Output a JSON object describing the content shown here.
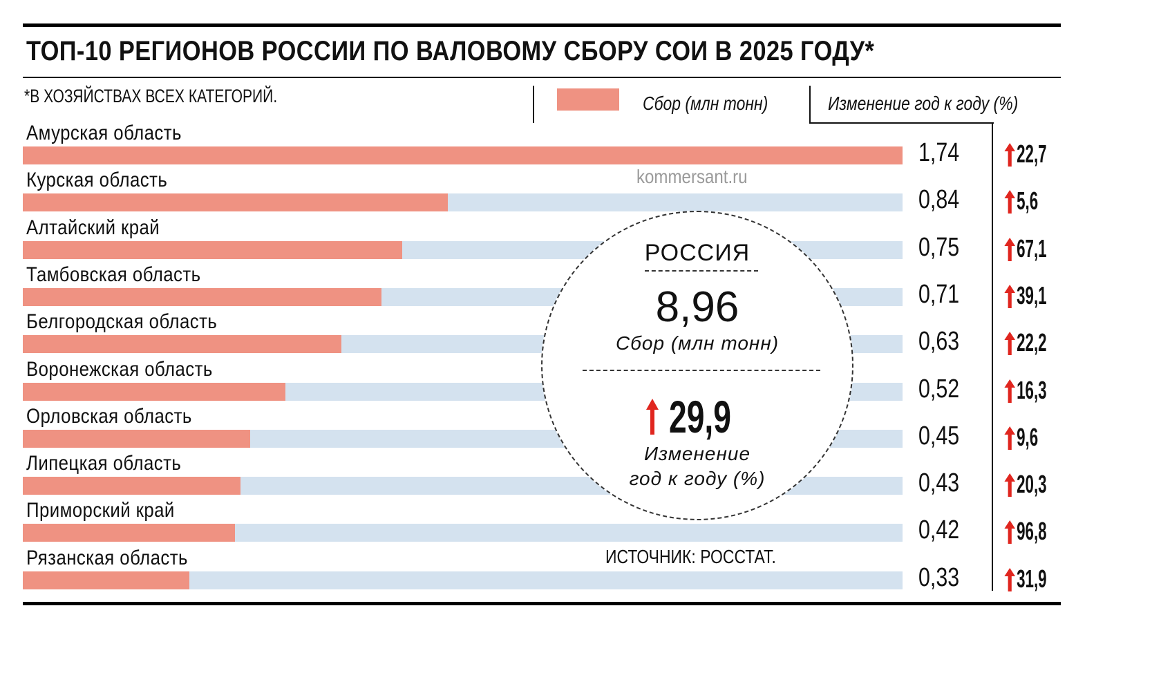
{
  "header": {
    "title": "ТОП-10 РЕГИОНОВ РОССИИ ПО ВАЛОВОМУ СБОРУ СОИ В 2025 ГОДУ*",
    "footnote": "*В ХОЗЯЙСТВАХ ВСЕХ КАТЕГОРИЙ."
  },
  "legend": {
    "harvest_label": "Сбор (млн тонн)",
    "change_label": "Изменение год к году (%)",
    "harvest_color": "#ef9282",
    "track_color": "#d4e2ef",
    "arrow_color": "#e0261f"
  },
  "watermark": "kommersant.ru",
  "summary": {
    "title": "РОССИЯ",
    "total": "8,96",
    "total_label": "Сбор (млн тонн)",
    "change": "29,9",
    "change_label_line1": "Изменение",
    "change_label_line2": "год к году (%)",
    "change_direction": "up-arrow-icon"
  },
  "source": "ИСТОЧНИК: РОССТАТ.",
  "rows": [
    {
      "region": "Амурская область",
      "value": "1,74",
      "change": "22,7"
    },
    {
      "region": "Курская область",
      "value": "0,84",
      "change": "5,6"
    },
    {
      "region": "Алтайский край",
      "value": "0,75",
      "change": "67,1"
    },
    {
      "region": "Тамбовская область",
      "value": "0,71",
      "change": "39,1"
    },
    {
      "region": "Белгородская область",
      "value": "0,63",
      "change": "22,2"
    },
    {
      "region": "Воронежская область",
      "value": "0,52",
      "change": "16,3"
    },
    {
      "region": "Орловская область",
      "value": "0,45",
      "change": "9,6"
    },
    {
      "region": "Липецкая область",
      "value": "0,43",
      "change": "20,3"
    },
    {
      "region": "Приморский край",
      "value": "0,42",
      "change": "96,8"
    },
    {
      "region": "Рязанская область",
      "value": "0,33",
      "change": "31,9"
    }
  ],
  "chart_data": {
    "type": "bar",
    "orientation": "horizontal",
    "title": "ТОП-10 РЕГИОНОВ РОССИИ ПО ВАЛОВОМУ СБОРУ СОИ В 2025 ГОДУ*",
    "subtitle": "*В ХОЗЯЙСТВАХ ВСЕХ КАТЕГОРИЙ.",
    "categories": [
      "Амурская область",
      "Курская область",
      "Алтайский край",
      "Тамбовская область",
      "Белгородская область",
      "Воронежская область",
      "Орловская область",
      "Липецкая область",
      "Приморский край",
      "Рязанская область"
    ],
    "series": [
      {
        "name": "Сбор (млн тонн)",
        "values": [
          1.74,
          0.84,
          0.75,
          0.71,
          0.63,
          0.52,
          0.45,
          0.43,
          0.42,
          0.33
        ]
      },
      {
        "name": "Изменение год к году (%)",
        "values": [
          22.7,
          5.6,
          67.1,
          39.1,
          22.2,
          16.3,
          9.6,
          20.3,
          96.8,
          31.9
        ]
      }
    ],
    "xlim": [
      0,
      1.74
    ],
    "grid": false,
    "legend_position": "top-right",
    "annotations": [
      "Россия: 8,96 млн тонн, ↑29,9% год к году",
      "ИСТОЧНИК: РОССТАТ.",
      "kommersant.ru"
    ]
  }
}
